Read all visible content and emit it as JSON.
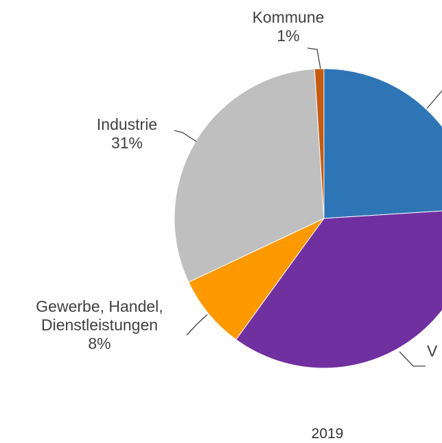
{
  "chart_data": {
    "type": "pie",
    "title": "2019",
    "categories": [
      null,
      "V",
      "Gewerbe, Handel, Dienstleistungen",
      "Industrie",
      "Kommune"
    ],
    "values": [
      24,
      36,
      8,
      31,
      1
    ],
    "value_labels": [
      null,
      null,
      "8%",
      "31%",
      "1%"
    ],
    "colors": [
      "#2e75b6",
      "#7030a0",
      "#ff9900",
      "#bfbfbf",
      "#c55a11"
    ]
  }
}
